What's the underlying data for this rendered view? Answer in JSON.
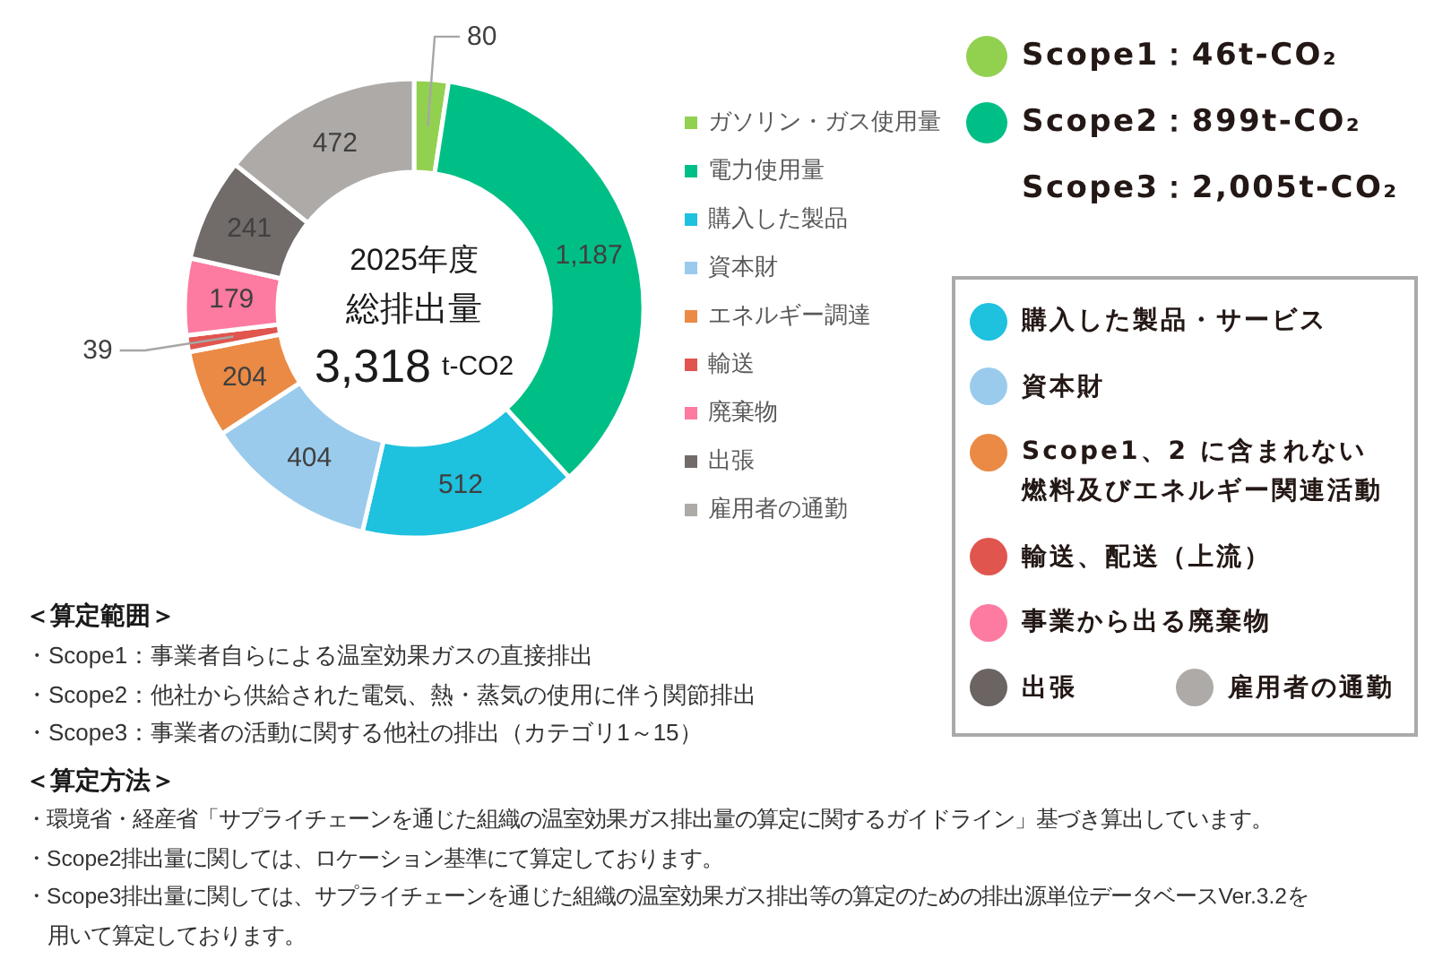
{
  "chart_data": [
    {
      "type": "donut",
      "title": "2025年度",
      "subtitle": "総排出量",
      "annotations": [
        "3,318 t-CO2"
      ],
      "categories": [
        "ガソリン・ガス使用量",
        "電力使用量",
        "購入した製品",
        "資本財",
        "エネルギー調達",
        "輸送",
        "廃棄物",
        "出張",
        "雇用者の通勤"
      ],
      "values": [
        80,
        1187,
        512,
        404,
        204,
        39,
        179,
        241,
        472
      ],
      "value_labels": [
        "80",
        "1,187",
        "512",
        "404",
        "204",
        "39",
        "179",
        "241",
        "472"
      ],
      "colors": [
        "#92d050",
        "#00bf86",
        "#1ec1de",
        "#9acbec",
        "#ea8a45",
        "#e0554e",
        "#fd7aa0",
        "#716b6a",
        "#aeaaa8"
      ],
      "legend": "right"
    },
    {
      "type": "other",
      "categories": [
        "Scope1：46t-CO₂",
        "Scope2：899t-CO₂",
        "Scope3：2,005t-CO₂"
      ],
      "colors": [
        "#92d050",
        "#00bf86",
        null
      ]
    },
    {
      "type": "other",
      "categories": [
        "購入した製品・サービス",
        "資本財",
        "Scope1、2 に含まれない燃料及びエネルギー関連活動",
        "輸送、配送（上流）",
        "事業から出る廃棄物",
        "出張",
        "雇用者の通勤"
      ],
      "colors": [
        "#1ec1de",
        "#9acbec",
        "#ea8a45",
        "#e0554e",
        "#fd7aa0",
        "#6b6463",
        "#aeaaa8"
      ]
    },
    {
      "type": "other",
      "title": "＜算定範囲＞",
      "annotations": [
        "・Scope1：事業者自らによる温室効果ガスの直接排出",
        "・Scope2：他社から供給された電気、熱・蒸気の使用に伴う関節排出",
        "・Scope3：事業者の活動に関する他社の排出（カテゴリ1～15）"
      ]
    },
    {
      "type": "other",
      "title": "＜算定方法＞",
      "annotations": [
        "・環境省・経産省「サプライチェーンを通じた組織の温室効果ガス排出量の算定に関するガイドライン」基づき算出しています。",
        "・Scope2排出量に関しては、ロケーション基準にて算定しております。",
        "・Scope3排出量に関しては、サプライチェーンを通じた組織の温室効果ガス排出等の算定のための排出源単位データベースVer.3.2を用いて算定しております。"
      ]
    }
  ]
}
